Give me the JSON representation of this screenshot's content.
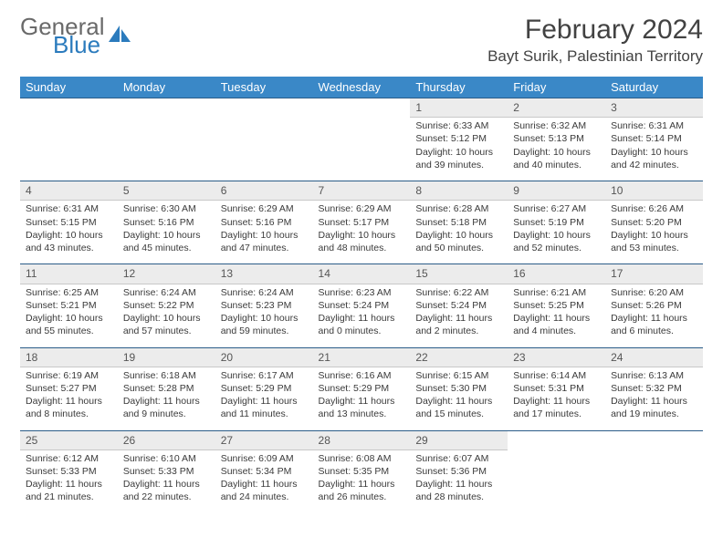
{
  "logo": {
    "line1": "General",
    "line2": "Blue"
  },
  "title": "February 2024",
  "location": "Bayt Surik, Palestinian Territory",
  "header_bg": "#3a88c7",
  "daynum_bg": "#ececec",
  "rule_color": "#2b5c88",
  "sunrise_label": "Sunrise:",
  "sunset_label": "Sunset:",
  "daylight_label": "Daylight:",
  "weekdays": [
    "Sunday",
    "Monday",
    "Tuesday",
    "Wednesday",
    "Thursday",
    "Friday",
    "Saturday"
  ],
  "weeks": [
    [
      null,
      null,
      null,
      null,
      {
        "n": "1",
        "sr": "6:33 AM",
        "ss": "5:12 PM",
        "dl": "10 hours and 39 minutes."
      },
      {
        "n": "2",
        "sr": "6:32 AM",
        "ss": "5:13 PM",
        "dl": "10 hours and 40 minutes."
      },
      {
        "n": "3",
        "sr": "6:31 AM",
        "ss": "5:14 PM",
        "dl": "10 hours and 42 minutes."
      }
    ],
    [
      {
        "n": "4",
        "sr": "6:31 AM",
        "ss": "5:15 PM",
        "dl": "10 hours and 43 minutes."
      },
      {
        "n": "5",
        "sr": "6:30 AM",
        "ss": "5:16 PM",
        "dl": "10 hours and 45 minutes."
      },
      {
        "n": "6",
        "sr": "6:29 AM",
        "ss": "5:16 PM",
        "dl": "10 hours and 47 minutes."
      },
      {
        "n": "7",
        "sr": "6:29 AM",
        "ss": "5:17 PM",
        "dl": "10 hours and 48 minutes."
      },
      {
        "n": "8",
        "sr": "6:28 AM",
        "ss": "5:18 PM",
        "dl": "10 hours and 50 minutes."
      },
      {
        "n": "9",
        "sr": "6:27 AM",
        "ss": "5:19 PM",
        "dl": "10 hours and 52 minutes."
      },
      {
        "n": "10",
        "sr": "6:26 AM",
        "ss": "5:20 PM",
        "dl": "10 hours and 53 minutes."
      }
    ],
    [
      {
        "n": "11",
        "sr": "6:25 AM",
        "ss": "5:21 PM",
        "dl": "10 hours and 55 minutes."
      },
      {
        "n": "12",
        "sr": "6:24 AM",
        "ss": "5:22 PM",
        "dl": "10 hours and 57 minutes."
      },
      {
        "n": "13",
        "sr": "6:24 AM",
        "ss": "5:23 PM",
        "dl": "10 hours and 59 minutes."
      },
      {
        "n": "14",
        "sr": "6:23 AM",
        "ss": "5:24 PM",
        "dl": "11 hours and 0 minutes."
      },
      {
        "n": "15",
        "sr": "6:22 AM",
        "ss": "5:24 PM",
        "dl": "11 hours and 2 minutes."
      },
      {
        "n": "16",
        "sr": "6:21 AM",
        "ss": "5:25 PM",
        "dl": "11 hours and 4 minutes."
      },
      {
        "n": "17",
        "sr": "6:20 AM",
        "ss": "5:26 PM",
        "dl": "11 hours and 6 minutes."
      }
    ],
    [
      {
        "n": "18",
        "sr": "6:19 AM",
        "ss": "5:27 PM",
        "dl": "11 hours and 8 minutes."
      },
      {
        "n": "19",
        "sr": "6:18 AM",
        "ss": "5:28 PM",
        "dl": "11 hours and 9 minutes."
      },
      {
        "n": "20",
        "sr": "6:17 AM",
        "ss": "5:29 PM",
        "dl": "11 hours and 11 minutes."
      },
      {
        "n": "21",
        "sr": "6:16 AM",
        "ss": "5:29 PM",
        "dl": "11 hours and 13 minutes."
      },
      {
        "n": "22",
        "sr": "6:15 AM",
        "ss": "5:30 PM",
        "dl": "11 hours and 15 minutes."
      },
      {
        "n": "23",
        "sr": "6:14 AM",
        "ss": "5:31 PM",
        "dl": "11 hours and 17 minutes."
      },
      {
        "n": "24",
        "sr": "6:13 AM",
        "ss": "5:32 PM",
        "dl": "11 hours and 19 minutes."
      }
    ],
    [
      {
        "n": "25",
        "sr": "6:12 AM",
        "ss": "5:33 PM",
        "dl": "11 hours and 21 minutes."
      },
      {
        "n": "26",
        "sr": "6:10 AM",
        "ss": "5:33 PM",
        "dl": "11 hours and 22 minutes."
      },
      {
        "n": "27",
        "sr": "6:09 AM",
        "ss": "5:34 PM",
        "dl": "11 hours and 24 minutes."
      },
      {
        "n": "28",
        "sr": "6:08 AM",
        "ss": "5:35 PM",
        "dl": "11 hours and 26 minutes."
      },
      {
        "n": "29",
        "sr": "6:07 AM",
        "ss": "5:36 PM",
        "dl": "11 hours and 28 minutes."
      },
      null,
      null
    ]
  ]
}
